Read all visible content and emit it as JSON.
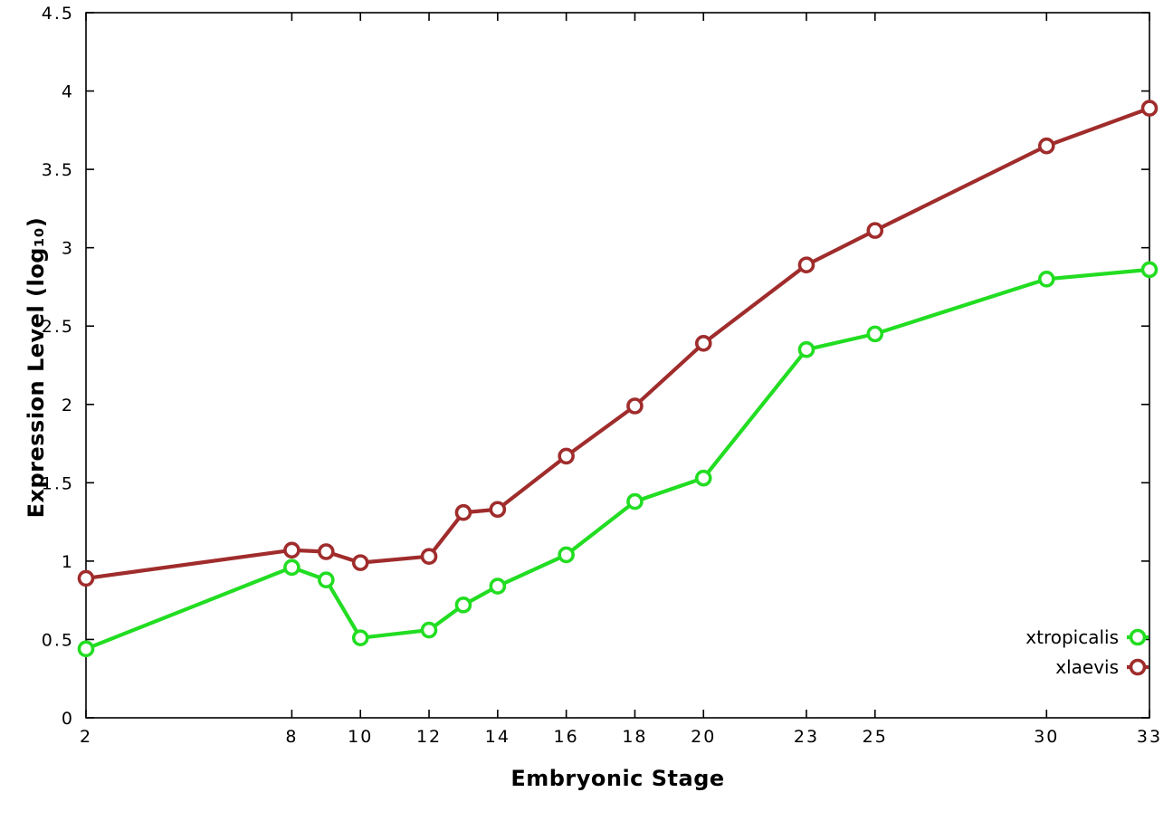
{
  "chart_data": {
    "type": "line",
    "title": "",
    "xlabel": "Embryonic Stage",
    "ylabel": "Expression Level (log₁₀)",
    "xlim": [
      2,
      33
    ],
    "ylim": [
      0,
      4.5
    ],
    "xticks": [
      2,
      8,
      10,
      12,
      14,
      16,
      18,
      20,
      23,
      25,
      30,
      33
    ],
    "yticks": [
      0,
      0.5,
      1,
      1.5,
      2,
      2.5,
      3,
      3.5,
      4,
      4.5
    ],
    "grid": false,
    "legend_position": "bottom-right-inside",
    "background": "#ffffff",
    "axis_color": "#000000",
    "x": [
      2,
      8,
      9,
      10,
      12,
      13,
      14,
      16,
      18,
      20,
      23,
      25,
      30,
      33
    ],
    "series": [
      {
        "name": "xtropicalis",
        "color": "#22dd22",
        "marker": "open-circle",
        "values": [
          0.44,
          0.96,
          0.88,
          0.51,
          0.56,
          0.72,
          0.84,
          1.04,
          1.38,
          1.53,
          2.35,
          2.45,
          2.8,
          2.86
        ]
      },
      {
        "name": "xlaevis",
        "color": "#a02c2c",
        "marker": "open-circle",
        "values": [
          0.89,
          1.07,
          1.06,
          0.99,
          1.03,
          1.31,
          1.33,
          1.67,
          1.99,
          2.39,
          2.89,
          3.11,
          3.65,
          3.89
        ]
      }
    ]
  }
}
